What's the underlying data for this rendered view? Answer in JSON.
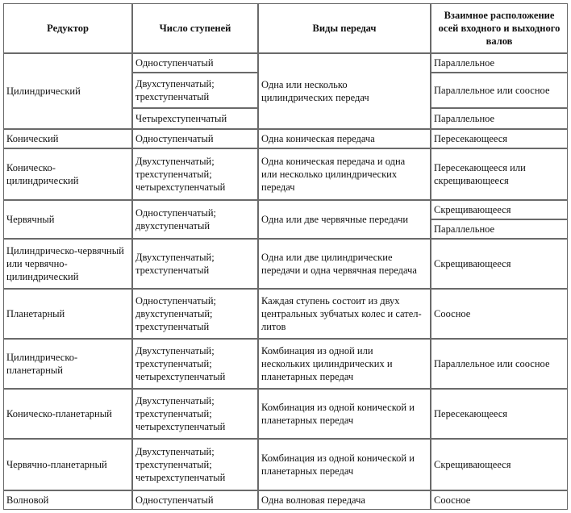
{
  "headers": {
    "reducer": "Редуктор",
    "stages": "Число ступеней",
    "types": "Виды передач",
    "axes": [
      "Взаимное расположение",
      "осей входного и выходного",
      "валов"
    ]
  },
  "rows": {
    "cylindrical": {
      "name": [
        "Цилиндрический"
      ],
      "stages": [
        [
          "Одноступенчатый"
        ],
        [
          "Двухступенчатый;",
          "трехступенчатый"
        ],
        [
          "Четырехступенчатый"
        ]
      ],
      "types": [
        "Одна или несколько",
        "цилиндрических передач"
      ],
      "axes": [
        [
          "Параллельное"
        ],
        [
          "Параллельное или соосное"
        ],
        [
          "Параллельное"
        ]
      ]
    },
    "conical": {
      "name": [
        "Конический"
      ],
      "stages": [
        "Одноступенчатый"
      ],
      "types": [
        "Одна коническая передача"
      ],
      "axes": [
        "Пересекающееся"
      ]
    },
    "conical_cyl": {
      "name": [
        "Коническо-",
        "цилиндрический"
      ],
      "stages": [
        "Двухступенчатый;",
        "трехступенчатый;",
        "четырехступенчатый"
      ],
      "types": [
        "Одна коническая передача и одна",
        "или несколько цилиндрических",
        "передач"
      ],
      "axes": [
        "Пересекающееся или",
        "скрещивающееся"
      ]
    },
    "worm": {
      "name": [
        "Червячный"
      ],
      "stages": [
        "Одноступенчатый;",
        "двухступенчатый"
      ],
      "types": [
        "Одна или две червячные передачи"
      ],
      "axes": [
        [
          "Скрещивающееся"
        ],
        [
          "Параллельное"
        ]
      ]
    },
    "cyl_worm": {
      "name": [
        "Цилиндрическо-червячный",
        "или червячно-",
        "цилиндрический"
      ],
      "stages": [
        "Двухступенчатый;",
        "трехступенчатый"
      ],
      "types": [
        "Одна или две цилиндрические",
        "передачи и одна червячная передача"
      ],
      "axes": [
        "Скрещивающееся"
      ]
    },
    "planetary": {
      "name": [
        "Планетарный"
      ],
      "stages": [
        "Одноступенчатый;",
        "двухступенчатый;",
        "трехступенчатый"
      ],
      "types": [
        "Каждая ступень состоит из двух",
        "центральных зубчатых колес и сател-",
        "литов"
      ],
      "axes": [
        "Соосное"
      ]
    },
    "cyl_planetary": {
      "name": [
        "Цилиндрическо-",
        "планетарный"
      ],
      "stages": [
        "Двухступенчатый;",
        "трехступенчатый;",
        "четырехступенчатый"
      ],
      "types": [
        "Комбинация из одной или",
        "нескольких цилиндрических и",
        "планетарных передач"
      ],
      "axes": [
        "Параллельное или соосное"
      ]
    },
    "con_planetary": {
      "name": [
        "Коническо-планетарный"
      ],
      "stages": [
        "Двухступенчатый;",
        "трехступенчатый;",
        "четырехступенчатый"
      ],
      "types": [
        "Комбинация из одной конической и",
        "планетарных передач"
      ],
      "axes": [
        "Пересекающееся"
      ]
    },
    "worm_planetary": {
      "name": [
        "Червячно-планетарный"
      ],
      "stages": [
        "Двухступенчатый;",
        "трехступенчатый;",
        "четырехступенчатый"
      ],
      "types": [
        "Комбинация из одной конической и",
        "планетарных передач"
      ],
      "axes": [
        "Скрещивающееся"
      ]
    },
    "wave": {
      "name": [
        "Волновой"
      ],
      "stages": [
        "Одноступенчатый"
      ],
      "types": [
        "Одна волновая передача"
      ],
      "axes": [
        "Соосное"
      ]
    }
  }
}
